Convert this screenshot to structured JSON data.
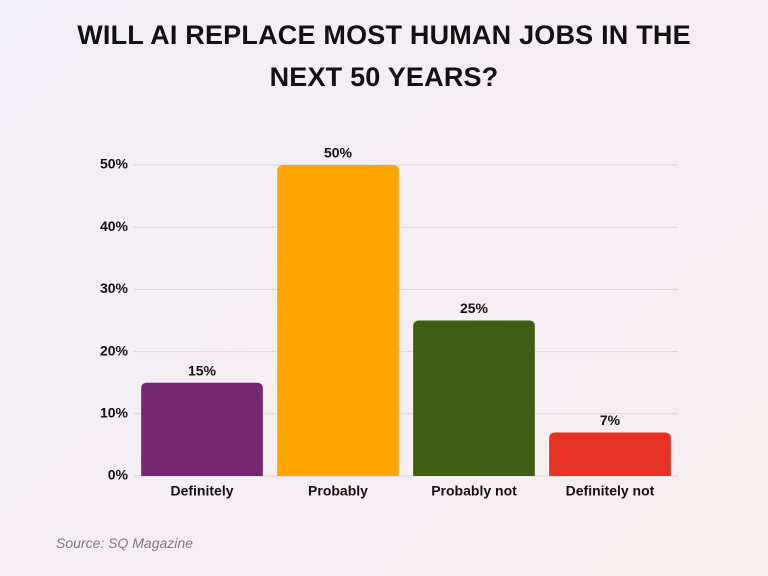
{
  "chart_data": {
    "type": "bar",
    "title": "WILL AI REPLACE MOST HUMAN JOBS IN THE NEXT 50 YEARS?",
    "categories": [
      "Definitely",
      "Probably",
      "Probably not",
      "Definitely not"
    ],
    "values": [
      15,
      50,
      25,
      7
    ],
    "value_labels": [
      "15%",
      "50%",
      "25%",
      "7%"
    ],
    "colors": [
      "#74296f",
      "#ffa500",
      "#3d5f14",
      "#e63323"
    ],
    "ylim": [
      0,
      50
    ],
    "yticks": [
      {
        "value": 0,
        "label": "0%"
      },
      {
        "value": 10,
        "label": "10%"
      },
      {
        "value": 20,
        "label": "20%"
      },
      {
        "value": 30,
        "label": "30%"
      },
      {
        "value": 40,
        "label": "40%"
      },
      {
        "value": 50,
        "label": "50%"
      }
    ],
    "grid": true,
    "source": "Source: SQ Magazine"
  }
}
